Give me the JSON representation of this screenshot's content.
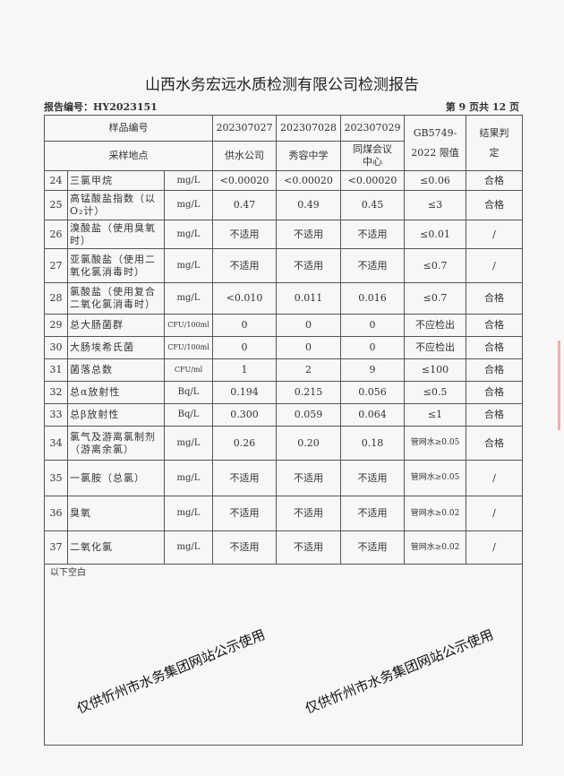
{
  "title": "山西水务宏远水质检测有限公司检测报告",
  "report_no": "报告编号：HY2023151",
  "page": "第 9 页共 12 页",
  "header": {
    "sample_no_label": "样品编号",
    "location_label": "采样地点",
    "samples": [
      "202307027",
      "202307028",
      "202307029"
    ],
    "locations": [
      "供水公司",
      "秀容中学",
      "同煤会议中心"
    ],
    "limit_label": "GB5749-2022 限值",
    "result_label": "结果判定"
  },
  "rows": [
    {
      "no": "24",
      "name": "三氯甲烷",
      "unit": "mg/L",
      "v1": "<0.00020",
      "v2": "<0.00020",
      "v3": "<0.00020",
      "limit": "≤0.06",
      "result": "合格"
    },
    {
      "no": "25",
      "name": "高锰酸盐指数（以O₂计）",
      "unit": "mg/L",
      "v1": "0.47",
      "v2": "0.49",
      "v3": "0.45",
      "limit": "≤3",
      "result": "合格"
    },
    {
      "no": "26",
      "name": "溴酸盐（使用臭氧时）",
      "unit": "mg/L",
      "v1": "不适用",
      "v2": "不适用",
      "v3": "不适用",
      "limit": "≤0.01",
      "result": "/"
    },
    {
      "no": "27",
      "name": "亚氯酸盐（使用二氧化氯消毒时）",
      "unit": "mg/L",
      "v1": "不适用",
      "v2": "不适用",
      "v3": "不适用",
      "limit": "≤0.7",
      "result": "/"
    },
    {
      "no": "28",
      "name": "氯酸盐（使用复合二氧化氯消毒时）",
      "unit": "mg/L",
      "v1": "<0.010",
      "v2": "0.011",
      "v3": "0.016",
      "limit": "≤0.7",
      "result": "合格"
    },
    {
      "no": "29",
      "name": "总大肠菌群",
      "unit": "CFU/100ml",
      "v1": "0",
      "v2": "0",
      "v3": "0",
      "limit": "不应检出",
      "result": "合格"
    },
    {
      "no": "30",
      "name": "大肠埃希氏菌",
      "unit": "CFU/100ml",
      "v1": "0",
      "v2": "0",
      "v3": "0",
      "limit": "不应检出",
      "result": "合格"
    },
    {
      "no": "31",
      "name": "菌落总数",
      "unit": "CFU/ml",
      "v1": "1",
      "v2": "2",
      "v3": "9",
      "limit": "≤100",
      "result": "合格"
    },
    {
      "no": "32",
      "name": "总α放射性",
      "unit": "Bq/L",
      "v1": "0.194",
      "v2": "0.215",
      "v3": "0.056",
      "limit": "≤0.5",
      "result": "合格"
    },
    {
      "no": "33",
      "name": "总β放射性",
      "unit": "Bq/L",
      "v1": "0.300",
      "v2": "0.059",
      "v3": "0.064",
      "limit": "≤1",
      "result": "合格"
    },
    {
      "no": "34",
      "name": "氯气及游离氯制剂（游离余氯）",
      "unit": "mg/L",
      "v1": "0.26",
      "v2": "0.20",
      "v3": "0.18",
      "limit": "管网水≥0.05",
      "result": "合格"
    },
    {
      "no": "35",
      "name": "一氯胺（总氯）",
      "unit": "mg/L",
      "v1": "不适用",
      "v2": "不适用",
      "v3": "不适用",
      "limit": "管网水≥0.05",
      "result": "/"
    },
    {
      "no": "36",
      "name": "臭氧",
      "unit": "mg/L",
      "v1": "不适用",
      "v2": "不适用",
      "v3": "不适用",
      "limit": "管网水≥0.02",
      "result": "/"
    },
    {
      "no": "37",
      "name": "二氧化氯",
      "unit": "mg/L",
      "v1": "不适用",
      "v2": "不适用",
      "v3": "不适用",
      "limit": "管网水≥0.02",
      "result": "/"
    }
  ],
  "blank_note": "以下空白",
  "watermark": "仅供忻州市水务集团网站公示使用"
}
